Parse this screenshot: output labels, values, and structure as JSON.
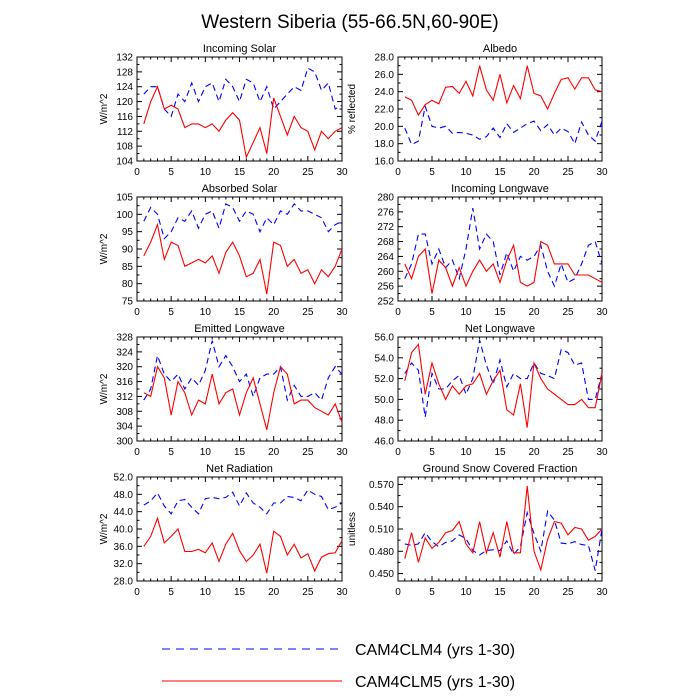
{
  "title": "Western Siberia (55-66.5N,60-90E)",
  "legend": [
    {
      "label": "CAM4CLM4 (yrs 1-30)",
      "color": "#0000ff",
      "dash": "dashed"
    },
    {
      "label": "CAM4CLM5 (yrs 1-30)",
      "color": "#ff0000",
      "dash": "solid"
    }
  ],
  "chart_data": [
    {
      "type": "line",
      "title": "Incoming Solar",
      "ylabel": "W/m^2",
      "ylabel_side": "left",
      "xlim": [
        0,
        30
      ],
      "xticks": [
        0,
        5,
        10,
        15,
        20,
        25,
        30
      ],
      "ylim": [
        104,
        132
      ],
      "yticks": [
        104,
        108,
        112,
        116,
        120,
        124,
        128,
        132
      ],
      "tick_format": "0",
      "x": [
        1,
        2,
        3,
        4,
        5,
        6,
        7,
        8,
        9,
        10,
        11,
        12,
        13,
        14,
        15,
        16,
        17,
        18,
        19,
        20,
        21,
        22,
        23,
        24,
        25,
        26,
        27,
        28,
        29,
        30
      ],
      "series": [
        {
          "name": "CAM4CLM4 (yrs 1-30)",
          "values": [
            122,
            124,
            124,
            118,
            116,
            122,
            120,
            125,
            120,
            124,
            125,
            120,
            126,
            124,
            120,
            126,
            125,
            120,
            124,
            118,
            120,
            122,
            124,
            123,
            129,
            128,
            123,
            125,
            118,
            119
          ]
        },
        {
          "name": "CAM4CLM5 (yrs 1-30)",
          "values": [
            114,
            120,
            124,
            118,
            119,
            118,
            113,
            114,
            114,
            113,
            114,
            112,
            115,
            117,
            115,
            105,
            109,
            113,
            106,
            121,
            116,
            111,
            116,
            113,
            112,
            107,
            112,
            110,
            112,
            113
          ]
        }
      ]
    },
    {
      "type": "line",
      "title": "Albedo",
      "ylabel": "% reflected",
      "ylabel_side": "right",
      "xlim": [
        0,
        30
      ],
      "xticks": [
        0,
        5,
        10,
        15,
        20,
        25,
        30
      ],
      "ylim": [
        16,
        28
      ],
      "yticks": [
        16,
        18,
        20,
        22,
        24,
        26,
        28
      ],
      "tick_format": "0.0",
      "x": [
        1,
        2,
        3,
        4,
        5,
        6,
        7,
        8,
        9,
        10,
        11,
        12,
        13,
        14,
        15,
        16,
        17,
        18,
        19,
        20,
        21,
        22,
        23,
        24,
        25,
        26,
        27,
        28,
        29,
        30
      ],
      "series": [
        {
          "name": "CAM4CLM4 (yrs 1-30)",
          "values": [
            19.8,
            17.9,
            18.3,
            22.3,
            20.0,
            19.8,
            20.0,
            19.2,
            19.3,
            19.2,
            19.0,
            18.5,
            18.8,
            19.8,
            18.7,
            20.3,
            19.3,
            19.8,
            20.3,
            20.6,
            19.5,
            20.2,
            19.0,
            19.8,
            19.4,
            18.0,
            20.5,
            19.0,
            18.3,
            20.6
          ]
        },
        {
          "name": "CAM4CLM5 (yrs 1-30)",
          "values": [
            23.4,
            23.0,
            21.3,
            22.5,
            23.0,
            22.6,
            24.5,
            24.6,
            23.8,
            25.2,
            23.5,
            27.0,
            24.2,
            23.0,
            26.0,
            22.7,
            24.7,
            23.2,
            27.0,
            23.8,
            23.5,
            22.0,
            23.8,
            25.4,
            25.6,
            24.3,
            25.6,
            25.6,
            24.2,
            24.0
          ]
        }
      ]
    },
    {
      "type": "line",
      "title": "Absorbed Solar",
      "ylabel": "W/m^2",
      "ylabel_side": "left",
      "xlim": [
        0,
        30
      ],
      "xticks": [
        0,
        5,
        10,
        15,
        20,
        25,
        30
      ],
      "ylim": [
        75,
        105
      ],
      "yticks": [
        75,
        80,
        85,
        90,
        95,
        100,
        105
      ],
      "tick_format": "0",
      "x": [
        1,
        2,
        3,
        4,
        5,
        6,
        7,
        8,
        9,
        10,
        11,
        12,
        13,
        14,
        15,
        16,
        17,
        18,
        19,
        20,
        21,
        22,
        23,
        24,
        25,
        26,
        27,
        28,
        29,
        30
      ],
      "series": [
        {
          "name": "CAM4CLM4 (yrs 1-30)",
          "values": [
            98,
            102,
            100,
            93,
            95,
            99,
            98,
            101,
            96,
            100,
            101,
            96,
            103,
            102,
            98,
            101,
            100,
            95,
            99,
            97,
            101,
            100,
            103,
            101,
            101,
            100,
            99,
            95,
            97,
            98
          ]
        },
        {
          "name": "CAM4CLM5 (yrs 1-30)",
          "values": [
            88,
            92,
            97,
            87,
            92,
            91,
            85,
            86,
            87,
            86,
            88,
            83,
            89,
            92,
            88,
            82,
            83,
            87,
            77,
            92,
            91,
            85,
            87,
            83,
            84,
            80,
            84,
            82,
            85,
            90
          ]
        }
      ]
    },
    {
      "type": "line",
      "title": "Incoming Longwave",
      "ylabel": "",
      "ylabel_side": "right",
      "xlim": [
        0,
        30
      ],
      "xticks": [
        0,
        5,
        10,
        15,
        20,
        25,
        30
      ],
      "ylim": [
        252,
        280
      ],
      "yticks": [
        252,
        256,
        260,
        264,
        268,
        272,
        276,
        280
      ],
      "tick_format": "0",
      "x": [
        1,
        2,
        3,
        4,
        5,
        6,
        7,
        8,
        9,
        10,
        11,
        12,
        13,
        14,
        15,
        16,
        17,
        18,
        19,
        20,
        21,
        22,
        23,
        24,
        25,
        26,
        27,
        28,
        29,
        30
      ],
      "series": [
        {
          "name": "CAM4CLM4 (yrs 1-30)",
          "values": [
            258,
            262,
            270,
            270,
            262,
            266,
            261,
            263,
            258,
            266,
            277,
            266,
            270,
            268,
            259,
            265,
            260,
            264,
            263,
            264,
            267,
            260,
            256,
            262,
            257,
            258,
            262,
            267,
            268,
            262
          ]
        },
        {
          "name": "CAM4CLM5 (yrs 1-30)",
          "values": [
            262,
            258,
            264,
            266,
            254,
            263,
            261,
            256,
            261,
            256,
            260,
            263,
            260,
            262,
            257,
            263,
            267,
            257,
            256,
            257,
            268,
            267,
            262,
            262,
            262,
            259,
            259,
            259,
            258,
            257
          ]
        }
      ]
    },
    {
      "type": "line",
      "title": "Emitted Longwave",
      "ylabel": "W/m^2",
      "ylabel_side": "left",
      "xlim": [
        0,
        30
      ],
      "xticks": [
        0,
        5,
        10,
        15,
        20,
        25,
        30
      ],
      "ylim": [
        300,
        328
      ],
      "yticks": [
        300,
        304,
        308,
        312,
        316,
        320,
        324,
        328
      ],
      "tick_format": "0",
      "x": [
        1,
        2,
        3,
        4,
        5,
        6,
        7,
        8,
        9,
        10,
        11,
        12,
        13,
        14,
        15,
        16,
        17,
        18,
        19,
        20,
        21,
        22,
        23,
        24,
        25,
        26,
        27,
        28,
        29,
        30
      ],
      "series": [
        {
          "name": "CAM4CLM4 (yrs 1-30)",
          "values": [
            311,
            314,
            323,
            318,
            316,
            318,
            314,
            317,
            315,
            319,
            327,
            320,
            323,
            320,
            316,
            318,
            312,
            317,
            318,
            318,
            320,
            311,
            315,
            312,
            312,
            313,
            311,
            317,
            320,
            318
          ]
        },
        {
          "name": "CAM4CLM5 (yrs 1-30)",
          "values": [
            313,
            312,
            320,
            317,
            307,
            316,
            313,
            307,
            311,
            310,
            318,
            310,
            313,
            314,
            307,
            313,
            317,
            310,
            303,
            313,
            320,
            318,
            310,
            311,
            311,
            309,
            308,
            307,
            310,
            305
          ]
        }
      ]
    },
    {
      "type": "line",
      "title": "Net Longwave",
      "ylabel": "",
      "ylabel_side": "right",
      "xlim": [
        0,
        30
      ],
      "xticks": [
        0,
        5,
        10,
        15,
        20,
        25,
        30
      ],
      "ylim": [
        46,
        56
      ],
      "yticks": [
        46,
        48,
        50,
        52,
        54,
        56
      ],
      "tick_format": "0.0",
      "x": [
        1,
        2,
        3,
        4,
        5,
        6,
        7,
        8,
        9,
        10,
        11,
        12,
        13,
        14,
        15,
        16,
        17,
        18,
        19,
        20,
        21,
        22,
        23,
        24,
        25,
        26,
        27,
        28,
        29,
        30
      ],
      "series": [
        {
          "name": "CAM4CLM4 (yrs 1-30)",
          "values": [
            52.5,
            53.5,
            52.8,
            48.3,
            52.5,
            51.0,
            51.0,
            51.8,
            52.3,
            50.5,
            52.0,
            55.7,
            53.3,
            51.5,
            53.8,
            51.2,
            52.5,
            52.0,
            52.0,
            53.5,
            52.5,
            52.3,
            52.0,
            54.8,
            54.5,
            53.3,
            53.5,
            50.0,
            50.0,
            52.5
          ]
        },
        {
          "name": "CAM4CLM5 (yrs 1-30)",
          "values": [
            51.8,
            54.5,
            55.3,
            50.5,
            53.5,
            51.5,
            50.0,
            51.3,
            50.5,
            51.3,
            51.5,
            52.5,
            50.5,
            51.8,
            52.8,
            49.0,
            48.5,
            51.5,
            47.3,
            53.5,
            52.0,
            51.0,
            50.5,
            50.0,
            49.5,
            49.5,
            50.0,
            49.2,
            49.2,
            52.5
          ]
        }
      ]
    },
    {
      "type": "line",
      "title": "Net Radiation",
      "ylabel": "W/m^2",
      "ylabel_side": "left",
      "xlim": [
        0,
        30
      ],
      "xticks": [
        0,
        5,
        10,
        15,
        20,
        25,
        30
      ],
      "ylim": [
        28,
        52
      ],
      "yticks": [
        28,
        32,
        36,
        40,
        44,
        48,
        52
      ],
      "tick_format": "0.0",
      "x": [
        1,
        2,
        3,
        4,
        5,
        6,
        7,
        8,
        9,
        10,
        11,
        12,
        13,
        14,
        15,
        16,
        17,
        18,
        19,
        20,
        21,
        22,
        23,
        24,
        25,
        26,
        27,
        28,
        29,
        30
      ],
      "series": [
        {
          "name": "CAM4CLM4 (yrs 1-30)",
          "values": [
            45.5,
            46.5,
            48.3,
            45.3,
            43.5,
            46.5,
            46.8,
            45.0,
            43.5,
            47.0,
            47.3,
            47.0,
            47.3,
            48.5,
            45.3,
            48.3,
            46.0,
            45.0,
            43.5,
            46.0,
            46.0,
            47.5,
            47.3,
            46.5,
            49.0,
            48.0,
            47.5,
            44.5,
            45.0,
            46.0
          ]
        },
        {
          "name": "CAM4CLM5 (yrs 1-30)",
          "values": [
            36.0,
            38.3,
            42.5,
            36.8,
            38.3,
            40.0,
            34.8,
            34.8,
            35.3,
            34.5,
            36.8,
            32.5,
            36.5,
            39.0,
            35.0,
            32.5,
            34.0,
            36.5,
            29.8,
            39.5,
            38.3,
            34.0,
            36.5,
            33.3,
            34.3,
            30.3,
            33.5,
            34.3,
            34.5,
            37.3
          ]
        }
      ]
    },
    {
      "type": "line",
      "title": "Ground Snow Covered Fraction",
      "ylabel": "unitless",
      "ylabel_side": "right",
      "xlim": [
        0,
        30
      ],
      "xticks": [
        0,
        5,
        10,
        15,
        20,
        25,
        30
      ],
      "ylim": [
        0.44,
        0.58
      ],
      "yticks": [
        0.45,
        0.48,
        0.51,
        0.54,
        0.57
      ],
      "tick_format": "0.000",
      "x": [
        1,
        2,
        3,
        4,
        5,
        6,
        7,
        8,
        9,
        10,
        11,
        12,
        13,
        14,
        15,
        16,
        17,
        18,
        19,
        20,
        21,
        22,
        23,
        24,
        25,
        26,
        27,
        28,
        29,
        30
      ],
      "series": [
        {
          "name": "CAM4CLM4 (yrs 1-30)",
          "values": [
            0.49,
            0.488,
            0.49,
            0.505,
            0.493,
            0.486,
            0.492,
            0.494,
            0.502,
            0.497,
            0.481,
            0.475,
            0.481,
            0.482,
            0.481,
            0.494,
            0.476,
            0.486,
            0.532,
            0.504,
            0.48,
            0.534,
            0.522,
            0.491,
            0.49,
            0.493,
            0.489,
            0.488,
            0.454,
            0.51
          ]
        },
        {
          "name": "CAM4CLM5 (yrs 1-30)",
          "values": [
            0.47,
            0.505,
            0.465,
            0.498,
            0.484,
            0.492,
            0.505,
            0.508,
            0.52,
            0.49,
            0.478,
            0.52,
            0.478,
            0.505,
            0.472,
            0.52,
            0.478,
            0.478,
            0.568,
            0.48,
            0.455,
            0.496,
            0.52,
            0.518,
            0.502,
            0.512,
            0.51,
            0.495,
            0.5,
            0.51
          ]
        }
      ]
    }
  ]
}
